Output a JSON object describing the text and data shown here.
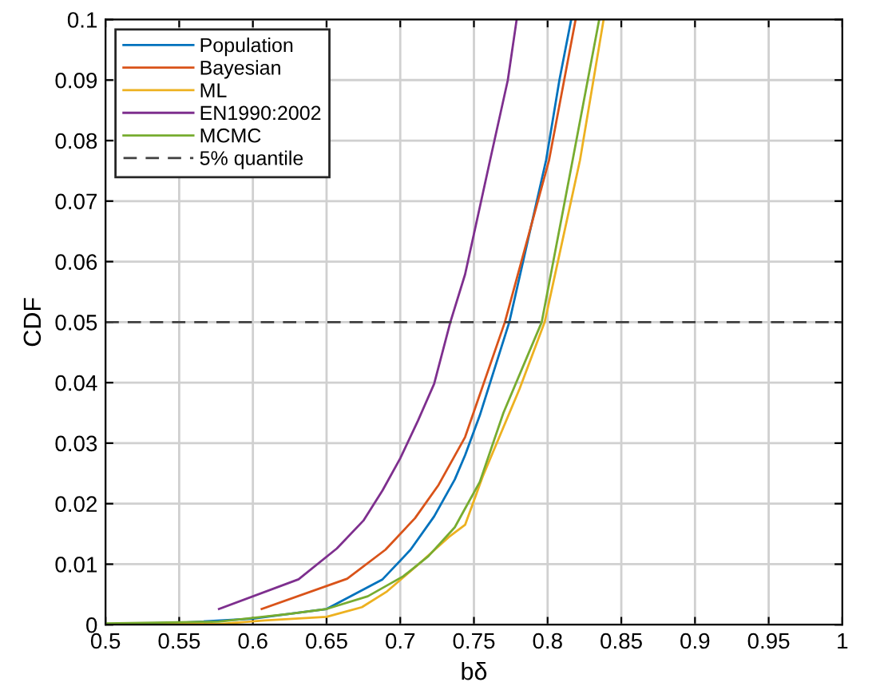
{
  "chart_data": {
    "type": "line",
    "xlabel": "bδ",
    "ylabel": "CDF",
    "xlim": [
      0.5,
      1
    ],
    "ylim": [
      0,
      0.1
    ],
    "xticks": [
      0.5,
      0.55,
      0.6,
      0.65,
      0.7,
      0.75,
      0.8,
      0.85,
      0.9,
      0.95,
      1
    ],
    "yticks": [
      0,
      0.01,
      0.02,
      0.03,
      0.04,
      0.05,
      0.06,
      0.07,
      0.08,
      0.09,
      0.1
    ],
    "grid": true,
    "legend": "top left",
    "line_style": "solid",
    "marker": "none",
    "series": [
      {
        "name": "Population",
        "color": "#0072bd",
        "x": [
          0.5,
          0.55,
          0.6,
          0.65,
          0.688,
          0.707,
          0.723,
          0.737,
          0.744,
          0.754,
          0.774,
          0.799,
          0.808,
          0.816
        ],
        "values": [
          0.0001,
          0.0003,
          0.001,
          0.0026,
          0.0075,
          0.0124,
          0.0179,
          0.024,
          0.028,
          0.0346,
          0.05,
          0.0768,
          0.09,
          0.1
        ]
      },
      {
        "name": "Bayesian",
        "color": "#d95319",
        "x": [
          0.606,
          0.664,
          0.69,
          0.71,
          0.726,
          0.744,
          0.771,
          0.801,
          0.819
        ],
        "values": [
          0.0026,
          0.0076,
          0.0124,
          0.0176,
          0.0231,
          0.031,
          0.05,
          0.0768,
          0.1
        ]
      },
      {
        "name": "ML",
        "color": "#edb120",
        "x": [
          0.5,
          0.577,
          0.608,
          0.65,
          0.674,
          0.691,
          0.712,
          0.733,
          0.744,
          0.756,
          0.781,
          0.798,
          0.822,
          0.838
        ],
        "values": [
          0.0001,
          0.0001,
          0.0007,
          0.0013,
          0.0029,
          0.0055,
          0.0099,
          0.0145,
          0.0165,
          0.0245,
          0.039,
          0.05,
          0.0768,
          0.1
        ]
      },
      {
        "name": "EN1990:2002",
        "color": "#7e2f8e",
        "x": [
          0.577,
          0.631,
          0.657,
          0.675,
          0.688,
          0.7,
          0.712,
          0.723,
          0.734,
          0.744,
          0.761,
          0.773,
          0.779
        ],
        "values": [
          0.0026,
          0.0075,
          0.0126,
          0.0172,
          0.0222,
          0.0275,
          0.0337,
          0.0398,
          0.05,
          0.0579,
          0.0768,
          0.09,
          0.1
        ]
      },
      {
        "name": "MCMC",
        "color": "#77ac30",
        "x": [
          0.5,
          0.577,
          0.625,
          0.65,
          0.678,
          0.702,
          0.719,
          0.737,
          0.744,
          0.754,
          0.77,
          0.796,
          0.817,
          0.835
        ],
        "values": [
          0.0002,
          0.0005,
          0.0018,
          0.0026,
          0.0047,
          0.008,
          0.0113,
          0.0161,
          0.0192,
          0.0236,
          0.035,
          0.05,
          0.0768,
          0.1
        ]
      }
    ],
    "ref_lines": [
      {
        "axis": "y",
        "value": 0.05,
        "label": "5% quantile",
        "color": "#404040",
        "line_style": "dashed"
      }
    ]
  }
}
